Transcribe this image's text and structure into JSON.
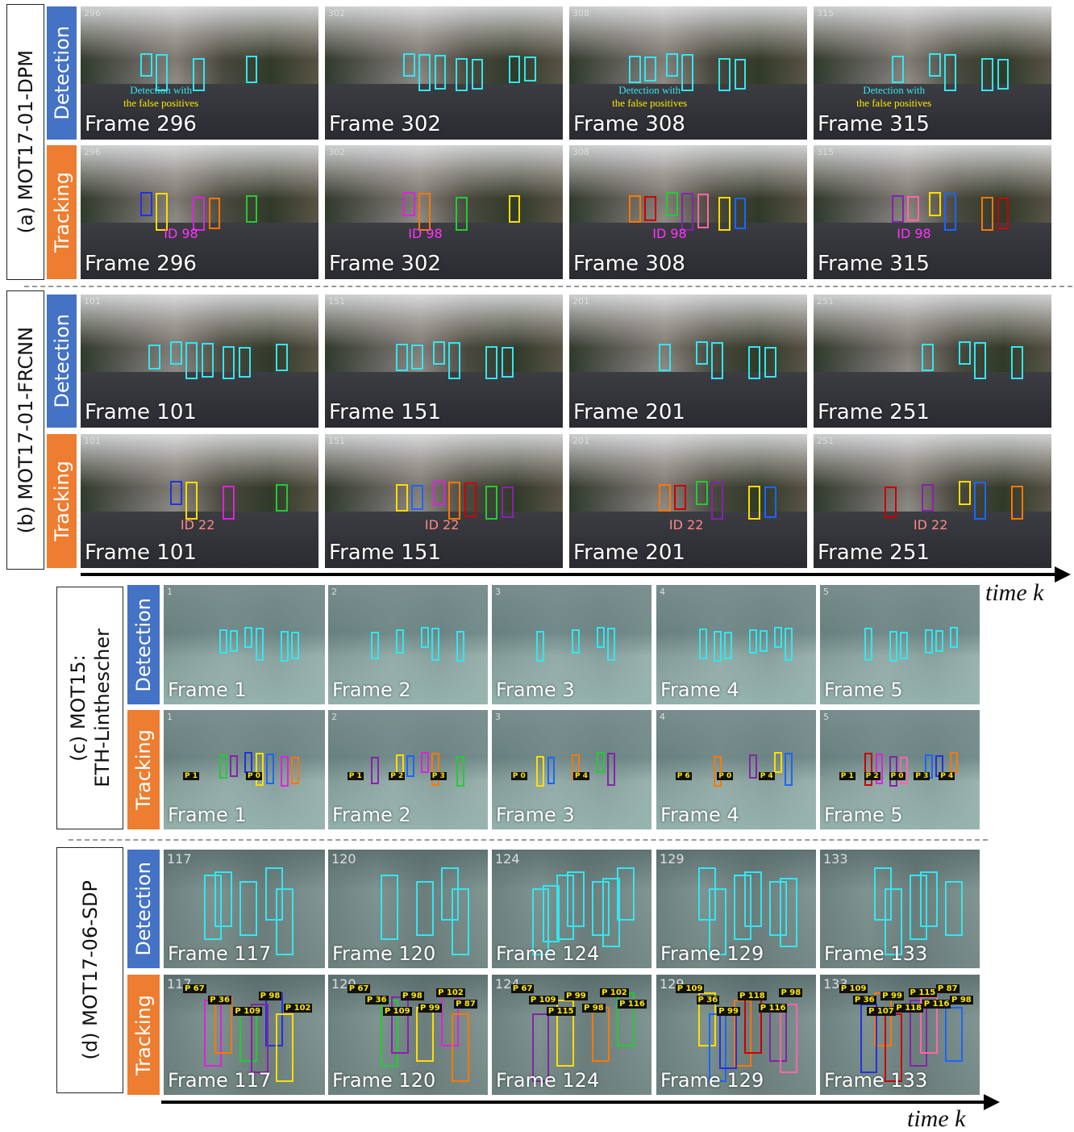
{
  "sections": [
    {
      "label": [
        "(a) MOT17-01-DPM"
      ],
      "rows": [
        {
          "label": "Detection",
          "frames": [
            {
              "index": "296",
              "caption": "Frame 296",
              "note": [
                "Detection with",
                "the false positives"
              ]
            },
            {
              "index": "302",
              "caption": "Frame 302"
            },
            {
              "index": "308",
              "caption": "Frame 308",
              "note": [
                "Detection with",
                "the false positives"
              ]
            },
            {
              "index": "315",
              "caption": "Frame 315",
              "note": [
                "Detection with",
                "the false positives"
              ]
            }
          ]
        },
        {
          "label": "Tracking",
          "frames": [
            {
              "index": "296",
              "caption": "Frame 296",
              "id": "ID 98"
            },
            {
              "index": "302",
              "caption": "Frame 302",
              "id": "ID 98"
            },
            {
              "index": "308",
              "caption": "Frame 308",
              "id": "ID 98"
            },
            {
              "index": "315",
              "caption": "Frame 315",
              "id": "ID 98"
            }
          ]
        }
      ]
    },
    {
      "label": [
        "(b) MOT17-01-FRCNN"
      ],
      "rows": [
        {
          "label": "Detection",
          "frames": [
            {
              "index": "101",
              "caption": "Frame 101"
            },
            {
              "index": "151",
              "caption": "Frame 151"
            },
            {
              "index": "201",
              "caption": "Frame 201"
            },
            {
              "index": "251",
              "caption": "Frame 251"
            }
          ]
        },
        {
          "label": "Tracking",
          "frames": [
            {
              "index": "101",
              "caption": "Frame 101",
              "id": "ID 22"
            },
            {
              "index": "151",
              "caption": "Frame 151",
              "id": "ID 22"
            },
            {
              "index": "201",
              "caption": "Frame 201",
              "id": "ID 22"
            },
            {
              "index": "251",
              "caption": "Frame 251",
              "id": "ID 22"
            }
          ]
        }
      ]
    },
    {
      "label": [
        "(c) MOT15:",
        "ETH-Linthescher"
      ],
      "rows": [
        {
          "label": "Detection",
          "frames": [
            {
              "index": "1",
              "caption": "Frame 1"
            },
            {
              "index": "2",
              "caption": "Frame 2"
            },
            {
              "index": "3",
              "caption": "Frame 3"
            },
            {
              "index": "4",
              "caption": "Frame 4"
            },
            {
              "index": "5",
              "caption": "Frame 5"
            }
          ]
        },
        {
          "label": "Tracking",
          "frames": [
            {
              "index": "1",
              "caption": "Frame 1",
              "tags": [
                "P 1",
                "P 0"
              ]
            },
            {
              "index": "2",
              "caption": "Frame 2",
              "tags": [
                "P 1",
                "P 2",
                "P 3"
              ]
            },
            {
              "index": "3",
              "caption": "Frame 3",
              "tags": [
                "P 0",
                "P 4"
              ]
            },
            {
              "index": "4",
              "caption": "Frame 4",
              "tags": [
                "P 6",
                "P 0",
                "P 4"
              ]
            },
            {
              "index": "5",
              "caption": "Frame 5",
              "tags": [
                "P 1",
                "P 2",
                "P 0",
                "P 3",
                "P 4"
              ]
            }
          ]
        }
      ]
    },
    {
      "label": [
        "(d) MOT17-06-SDP"
      ],
      "rows": [
        {
          "label": "Detection",
          "frames": [
            {
              "index": "117",
              "caption": "Frame 117"
            },
            {
              "index": "120",
              "caption": "Frame 120"
            },
            {
              "index": "124",
              "caption": "Frame 124"
            },
            {
              "index": "129",
              "caption": "Frame 129"
            },
            {
              "index": "133",
              "caption": "Frame 133"
            }
          ]
        },
        {
          "label": "Tracking",
          "frames": [
            {
              "index": "117",
              "caption": "Frame 117",
              "tags": [
                "P 67",
                "P 36",
                "P 109",
                "P 98",
                "P 102"
              ]
            },
            {
              "index": "120",
              "caption": "Frame 120",
              "tags": [
                "P 67",
                "P 36",
                "P 109",
                "P 98",
                "P 99",
                "P 102",
                "P 87"
              ]
            },
            {
              "index": "124",
              "caption": "Frame 124",
              "tags": [
                "P 67",
                "P 109",
                "P 115",
                "P 99",
                "P 98",
                "P 102",
                "P 116"
              ]
            },
            {
              "index": "129",
              "caption": "Frame 129",
              "tags": [
                "P 109",
                "P 36",
                "P 99",
                "P 118",
                "P 116",
                "P 98"
              ]
            },
            {
              "index": "133",
              "caption": "Frame 133",
              "tags": [
                "P 109",
                "P 36",
                "P 107",
                "P 99",
                "P 118",
                "P 115",
                "P 116",
                "P 87",
                "P 98"
              ]
            }
          ]
        }
      ]
    }
  ],
  "timeline_top": "time k",
  "timeline_bottom": "time k"
}
